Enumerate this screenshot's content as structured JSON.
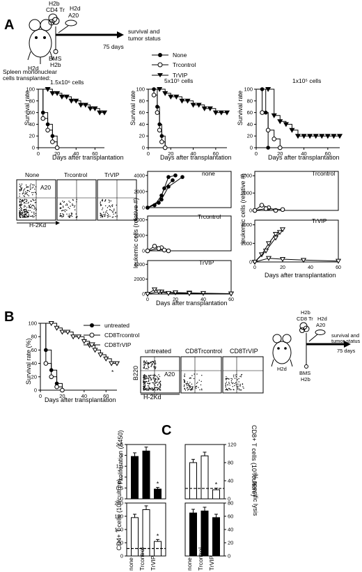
{
  "panels": {
    "A": {
      "label": "A",
      "schematic": {
        "donor_mhc": "H2b",
        "donor_cells": "CD4 Tr",
        "tumor_mhc": "H2d",
        "tumor": "A20",
        "host_mhc": "H2d",
        "bms": "BMS",
        "bms_mhc": "H2b",
        "outcome_line1": "survival and",
        "outcome_line2": "tumor status",
        "duration": "75 days"
      },
      "legend": [
        "None",
        "Trcontrol",
        "TrVIP"
      ],
      "transplanted_label": "Spleen mononuclear",
      "transplanted_label2": "cells transplanted:",
      "survival_charts": [
        {
          "dose": "1.5x10⁶ cells",
          "ylabel": "Survival rate",
          "xlabel": "Days after transplantation"
        },
        {
          "dose": "5x10⁵ cells",
          "ylabel": "Survival rate",
          "xlabel": "Days after transplantation"
        },
        {
          "dose": "1x10⁵ cells",
          "ylabel": "Survival rate",
          "xlabel": "Days after transplantation"
        }
      ],
      "flow": {
        "titles": [
          "None",
          "Trcontrol",
          "TrVIP"
        ],
        "gate_label": "A20",
        "xlabel": "H-2Kd"
      },
      "leukemic": {
        "ylabel": "leukemic cells (relative #)",
        "xlabel": "Days after transplantation",
        "mid_labels": [
          "none",
          "Trcontrol",
          "TrVIP"
        ],
        "right_labels": [
          "Trcontrol",
          "TrVIP"
        ]
      }
    },
    "B": {
      "label": "B",
      "ylabel": "Survival rate (%)",
      "xlabel": "Days after transplantation",
      "legend": [
        "untreated",
        "CD8Trcontrol",
        "CD8TrVIP"
      ],
      "asterisk": "*",
      "flow": {
        "titles": [
          "untreated",
          "CD8Trcontrol",
          "CD8TrVIP"
        ],
        "gate_label": "A20",
        "xlabel": "H-2Kd",
        "ylabel": "B220"
      },
      "schematic": {
        "donor_mhc": "H2b",
        "donor_cells": "CD8 Tr",
        "tumor_mhc": "H2d",
        "tumor": "A20",
        "host_mhc": "H2d",
        "bms": "BMS",
        "bms_mhc": "H2b",
        "outcome_line1": "survival and",
        "outcome_line2": "tumor status",
        "duration": "75 days"
      }
    },
    "C": {
      "label": "C",
      "categories": [
        "none",
        "Trcontrol",
        "TrVIP"
      ],
      "bars": [
        {
          "ylabel": "Proliferation (A450)",
          "values": [
            1.95,
            2.2,
            0.45
          ],
          "ylim": [
            0,
            2.5
          ],
          "fill": "#000"
        },
        {
          "ylabel": "CD8+ T cells (10³/culture)",
          "values": [
            80,
            95,
            20
          ],
          "ylim": [
            0,
            120
          ],
          "fill": "#fff"
        },
        {
          "ylabel": "CD4+ T cells (10³/culture)",
          "values": [
            145,
            175,
            55
          ],
          "ylim": [
            0,
            200
          ],
          "fill": "#fff"
        },
        {
          "ylabel": "% specific lysis",
          "values": [
            65,
            68,
            58
          ],
          "ylim": [
            0,
            80
          ],
          "fill": "#000"
        }
      ]
    }
  },
  "chart_data": [
    {
      "type": "line",
      "title": "1.5x10⁶ cells",
      "xlabel": "Days after transplantation",
      "ylabel": "Survival rate",
      "xlim": [
        0,
        70
      ],
      "ylim": [
        0,
        100
      ],
      "series": [
        {
          "name": "None",
          "x": [
            0,
            5,
            10,
            15,
            20
          ],
          "y": [
            100,
            60,
            40,
            20,
            0
          ]
        },
        {
          "name": "Trcontrol",
          "x": [
            0,
            5,
            10,
            15,
            20
          ],
          "y": [
            100,
            50,
            30,
            10,
            0
          ]
        },
        {
          "name": "TrVIP",
          "x": [
            0,
            10,
            15,
            20,
            25,
            30,
            35,
            40,
            45,
            50,
            55,
            60,
            65,
            70
          ],
          "y": [
            100,
            100,
            93,
            93,
            87,
            87,
            80,
            80,
            73,
            73,
            67,
            67,
            60,
            60
          ]
        }
      ]
    },
    {
      "type": "line",
      "title": "5x10⁵ cells",
      "xlabel": "Days after transplantation",
      "ylabel": "Survival rate",
      "xlim": [
        0,
        70
      ],
      "ylim": [
        0,
        100
      ],
      "series": [
        {
          "name": "None",
          "x": [
            0,
            5,
            8,
            10,
            12,
            15
          ],
          "y": [
            100,
            100,
            70,
            40,
            20,
            0
          ]
        },
        {
          "name": "Trcontrol",
          "x": [
            0,
            5,
            8,
            10,
            12,
            15
          ],
          "y": [
            100,
            90,
            60,
            30,
            10,
            0
          ]
        },
        {
          "name": "TrVIP",
          "x": [
            0,
            10,
            15,
            20,
            25,
            30,
            35,
            40,
            45,
            50,
            55,
            60,
            65,
            70
          ],
          "y": [
            100,
            100,
            93,
            87,
            87,
            80,
            80,
            73,
            73,
            67,
            67,
            60,
            60,
            60
          ]
        }
      ]
    },
    {
      "type": "line",
      "title": "1x10⁵ cells",
      "xlabel": "Days after transplantation",
      "ylabel": "Survival rate",
      "xlim": [
        0,
        70
      ],
      "ylim": [
        0,
        100
      ],
      "series": [
        {
          "name": "None",
          "x": [
            0,
            5,
            8,
            10
          ],
          "y": [
            100,
            100,
            60,
            0
          ]
        },
        {
          "name": "Trcontrol",
          "x": [
            0,
            5,
            10,
            15,
            20
          ],
          "y": [
            100,
            60,
            30,
            15,
            0
          ]
        },
        {
          "name": "TrVIP",
          "x": [
            0,
            10,
            15,
            20,
            25,
            30,
            35,
            40,
            45,
            50,
            55,
            60,
            65,
            70
          ],
          "y": [
            100,
            100,
            55,
            45,
            40,
            30,
            20,
            20,
            20,
            20,
            20,
            20,
            20,
            20
          ]
        }
      ]
    },
    {
      "type": "line",
      "title": "",
      "xlabel": "Days after transplantation",
      "ylabel": "Survival rate (%)",
      "xlim": [
        0,
        70
      ],
      "ylim": [
        0,
        100
      ],
      "series": [
        {
          "name": "untreated",
          "x": [
            0,
            5,
            10,
            15,
            20
          ],
          "y": [
            100,
            60,
            30,
            10,
            0
          ]
        },
        {
          "name": "CD8Trcontrol",
          "x": [
            0,
            5,
            10,
            15,
            20
          ],
          "y": [
            100,
            40,
            20,
            5,
            0
          ]
        },
        {
          "name": "CD8TrVIP",
          "x": [
            0,
            10,
            15,
            20,
            25,
            30,
            35,
            40,
            45,
            50,
            55,
            60,
            65,
            70
          ],
          "y": [
            100,
            100,
            93,
            87,
            87,
            80,
            80,
            73,
            67,
            60,
            53,
            47,
            40,
            40
          ]
        }
      ]
    },
    {
      "type": "bar",
      "ylabel": "Proliferation (A450)",
      "categories": [
        "none",
        "Trcontrol",
        "TrVIP"
      ],
      "values": [
        1.95,
        2.2,
        0.45
      ],
      "ylim": [
        0,
        2.5
      ]
    },
    {
      "type": "bar",
      "ylabel": "CD8+ T cells (10³/culture)",
      "categories": [
        "none",
        "Trcontrol",
        "TrVIP"
      ],
      "values": [
        80,
        95,
        20
      ],
      "ylim": [
        0,
        120
      ]
    },
    {
      "type": "bar",
      "ylabel": "CD4+ T cells (10³/culture)",
      "categories": [
        "none",
        "Trcontrol",
        "TrVIP"
      ],
      "values": [
        145,
        175,
        55
      ],
      "ylim": [
        0,
        200
      ]
    },
    {
      "type": "bar",
      "ylabel": "% specific lysis",
      "categories": [
        "none",
        "Trcontrol",
        "TrVIP"
      ],
      "values": [
        65,
        68,
        58
      ],
      "ylim": [
        0,
        80
      ]
    }
  ]
}
